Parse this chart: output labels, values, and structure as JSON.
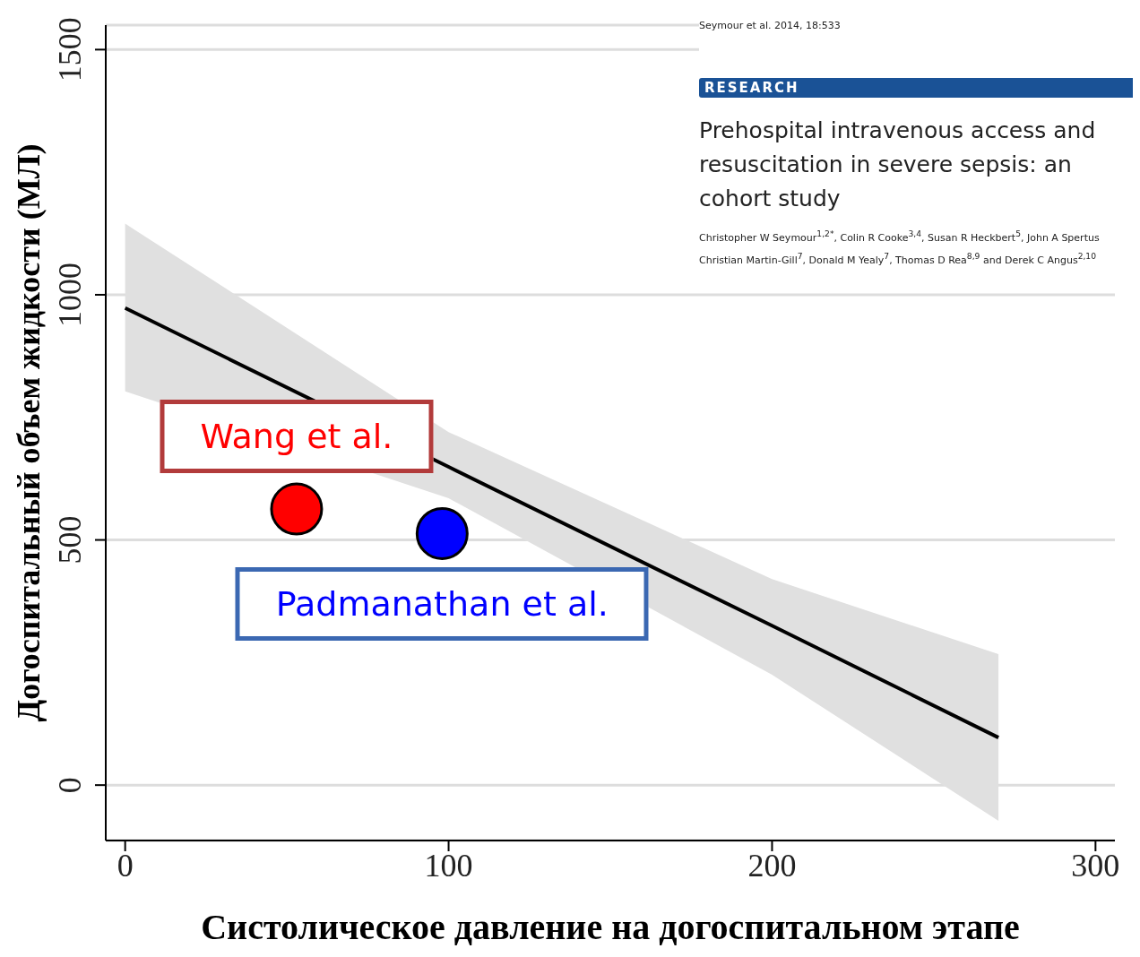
{
  "chart_data": {
    "type": "line",
    "xlabel": "Систолическое давление на догоспитальном этапе",
    "ylabel": "Догоспитальный объем жидкости (МЛ)",
    "xlim": [
      -6,
      306
    ],
    "xticks": [
      0,
      100,
      200,
      300
    ],
    "ylim": [
      -113,
      1550
    ],
    "yticks": [
      0,
      500,
      1000,
      1500
    ],
    "grid": "y",
    "series": [
      {
        "color": "#000000",
        "x": [
          0,
          100,
          200,
          270
        ],
        "values": [
          973,
          649,
          325,
          97
        ],
        "lower": [
          803,
          585,
          225,
          -73
        ],
        "upper": [
          1145,
          720,
          420,
          267
        ]
      },
      {
        "type": "scatter",
        "name": "Wang et al.",
        "color": "#ff0000",
        "marker": "circle",
        "x": [
          53
        ],
        "values": [
          563
        ]
      },
      {
        "type": "scatter",
        "name": "Padmanathan et al.",
        "color": "#0000ff",
        "marker": "circle",
        "x": [
          98
        ],
        "values": [
          513
        ]
      }
    ],
    "annotations": [
      "Seymour et al. 2014, 18:533",
      "RESEARCH",
      "Prehospital intravenous access and",
      "resuscitation in severe sepsis: an",
      "cohort study",
      "Christopher W Seymour$^{1,2*}$, Colin R Cooke$^{3,4}$, Susan R Heckbert$^{5}$, John A Spertus",
      "Christian Martin-Gill$^{7}$, Donald M Yealy$^{7}$, Thomas D Rea$^{8,9}$ and Derek C Angus$^{2,10}$"
    ]
  }
}
